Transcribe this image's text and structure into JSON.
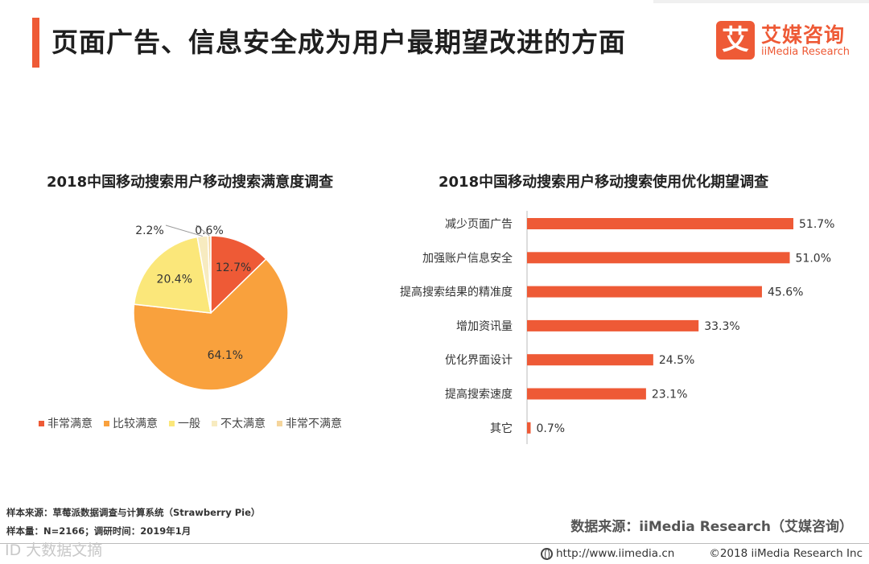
{
  "header": {
    "title": "页面广告、信息安全成为用户最期望改进的方面",
    "logo_mark": "艾",
    "logo_cn": "艾媒咨询",
    "logo_en": "iiMedia Research",
    "accent_color": "#ee5a36"
  },
  "chart_data": [
    {
      "type": "pie",
      "title": "2018中国移动搜索用户移动搜索满意度调查",
      "categories": [
        "非常满意",
        "比较满意",
        "一般",
        "不太满意",
        "非常不满意"
      ],
      "values": [
        12.7,
        64.1,
        20.4,
        2.2,
        0.6
      ],
      "labels": [
        "12.7%",
        "64.1%",
        "20.4%",
        "2.2%",
        "0.6%"
      ],
      "colors": [
        "#ee5a36",
        "#f9a13d",
        "#fbe77a",
        "#f7ebc0",
        "#f5d59c"
      ],
      "legend_position": "bottom"
    },
    {
      "type": "bar",
      "orientation": "horizontal",
      "title": "2018中国移动搜索用户移动搜索使用优化期望调查",
      "categories": [
        "减少页面广告",
        "加强账户信息安全",
        "提高搜索结果的精准度",
        "增加资讯量",
        "优化界面设计",
        "提高搜索速度",
        "其它"
      ],
      "values": [
        51.7,
        51.0,
        45.6,
        33.3,
        24.5,
        23.1,
        0.7
      ],
      "labels": [
        "51.7%",
        "51.0%",
        "45.6%",
        "33.3%",
        "24.5%",
        "23.1%",
        "0.7%"
      ],
      "color": "#ee5a36",
      "xlim": [
        0,
        55
      ]
    }
  ],
  "footer": {
    "sample_source": "样本来源：草莓派数据调查与计算系统（Strawberry Pie）",
    "sample_size": "样本量：N=2166；调研时间：2019年1月",
    "data_source": "数据来源：iiMedia Research（艾媒咨询）",
    "url": "http://www.iimedia.cn",
    "copyright": "©2018  iiMedia Research  Inc",
    "watermark": "ID 大数据文摘"
  }
}
